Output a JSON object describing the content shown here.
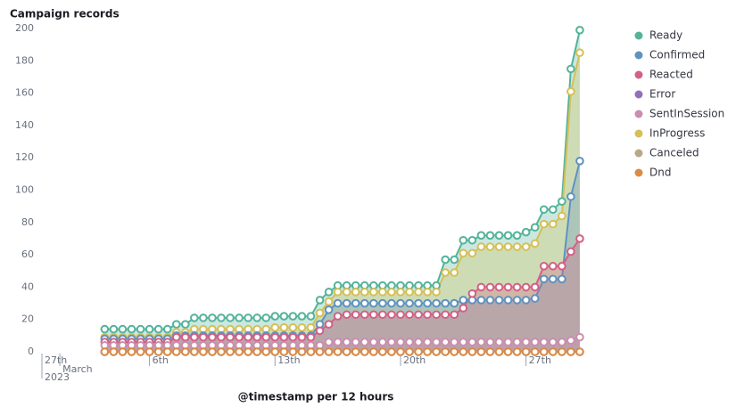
{
  "chart_data": {
    "type": "area",
    "title": "Campaign records",
    "x_label": "@timestamp per 12 hours",
    "x_year": "2023",
    "x": [
      2.5,
      3,
      3.5,
      4,
      4.5,
      5,
      5.5,
      6,
      6.5,
      7,
      7.5,
      8,
      8.5,
      9,
      9.5,
      10,
      10.5,
      11,
      11.5,
      12,
      12.5,
      13,
      13.5,
      14,
      14.5,
      15,
      15.5,
      16,
      16.5,
      17,
      17.5,
      18,
      18.5,
      19,
      19.5,
      20,
      20.5,
      21,
      21.5,
      22,
      22.5,
      23,
      23.5,
      24,
      24.5,
      25,
      25.5,
      26,
      26.5,
      27,
      27.5,
      28,
      28.5,
      29
    ],
    "xlim": [
      -1,
      29.5
    ],
    "xticks": [
      {
        "value": -1,
        "label": "27th"
      },
      {
        "value": 0,
        "label": "March"
      },
      {
        "value": 5,
        "label": "6th"
      },
      {
        "value": 12,
        "label": "13th"
      },
      {
        "value": 19,
        "label": "20th"
      },
      {
        "value": 26,
        "label": "27th"
      }
    ],
    "ylim": [
      0,
      200
    ],
    "yticks": [
      0,
      20,
      40,
      60,
      80,
      100,
      120,
      140,
      160,
      180,
      200
    ],
    "grid": false,
    "legend": "right",
    "series": [
      {
        "name": "Ready",
        "color": "#54b399",
        "values": [
          14,
          14,
          14,
          14,
          14,
          14,
          14,
          14,
          17,
          17,
          21,
          21,
          21,
          21,
          21,
          21,
          21,
          21,
          21,
          22,
          22,
          22,
          22,
          22,
          32,
          37,
          41,
          41,
          41,
          41,
          41,
          41,
          41,
          41,
          41,
          41,
          41,
          41,
          57,
          57,
          69,
          69,
          72,
          72,
          72,
          72,
          72,
          74,
          77,
          88,
          88,
          93,
          175,
          199
        ]
      },
      {
        "name": "Confirmed",
        "color": "#6092c0",
        "values": [
          8,
          8,
          8,
          8,
          8,
          8,
          8,
          8,
          10,
          10,
          10,
          10,
          10,
          10,
          10,
          10,
          10,
          10,
          10,
          10,
          10,
          10,
          10,
          10,
          17,
          26,
          30,
          30,
          30,
          30,
          30,
          30,
          30,
          30,
          30,
          30,
          30,
          30,
          30,
          30,
          32,
          32,
          32,
          32,
          32,
          32,
          32,
          32,
          33,
          45,
          45,
          45,
          96,
          118
        ]
      },
      {
        "name": "Reacted",
        "color": "#d36086",
        "values": [
          6,
          6,
          6,
          6,
          6,
          6,
          6,
          6,
          9,
          9,
          9,
          9,
          9,
          9,
          9,
          9,
          9,
          9,
          9,
          9,
          9,
          9,
          9,
          9,
          13,
          17,
          22,
          23,
          23,
          23,
          23,
          23,
          23,
          23,
          23,
          23,
          23,
          23,
          23,
          23,
          27,
          36,
          40,
          40,
          40,
          40,
          40,
          40,
          40,
          53,
          53,
          53,
          62,
          70
        ]
      },
      {
        "name": "Error",
        "color": "#9170b8",
        "values": [
          0,
          0,
          0,
          0,
          0,
          0,
          0,
          0,
          0,
          0,
          0,
          0,
          0,
          0,
          0,
          0,
          0,
          0,
          0,
          0,
          0,
          0,
          0,
          0,
          0,
          0,
          0,
          0,
          0,
          0,
          0,
          0,
          0,
          0,
          0,
          0,
          0,
          0,
          0,
          0,
          0,
          0,
          0,
          0,
          0,
          0,
          0,
          0,
          0,
          0,
          0,
          0,
          0,
          0
        ]
      },
      {
        "name": "SentInSession",
        "color": "#ca8eae",
        "values": [
          4,
          4,
          4,
          4,
          4,
          4,
          4,
          4,
          4,
          4,
          4,
          4,
          4,
          4,
          4,
          4,
          4,
          4,
          4,
          4,
          4,
          4,
          4,
          4,
          4,
          6,
          6,
          6,
          6,
          6,
          6,
          6,
          6,
          6,
          6,
          6,
          6,
          6,
          6,
          6,
          6,
          6,
          6,
          6,
          6,
          6,
          6,
          6,
          6,
          6,
          6,
          6,
          7,
          9
        ]
      },
      {
        "name": "InProgress",
        "color": "#d6bf57",
        "values": [
          9,
          9,
          9,
          9,
          9,
          9,
          9,
          9,
          12,
          12,
          14,
          14,
          14,
          14,
          14,
          14,
          14,
          14,
          14,
          15,
          15,
          15,
          15,
          15,
          24,
          31,
          37,
          37,
          37,
          37,
          37,
          37,
          37,
          37,
          37,
          37,
          37,
          37,
          49,
          49,
          61,
          61,
          65,
          65,
          65,
          65,
          65,
          65,
          67,
          79,
          79,
          84,
          161,
          185
        ]
      },
      {
        "name": "Canceled",
        "color": "#b9a888",
        "values": [
          0,
          0,
          0,
          0,
          0,
          0,
          0,
          0,
          0,
          0,
          0,
          0,
          0,
          0,
          0,
          0,
          0,
          0,
          0,
          0,
          0,
          0,
          0,
          0,
          0,
          0,
          0,
          0,
          0,
          0,
          0,
          0,
          0,
          0,
          0,
          0,
          0,
          0,
          0,
          0,
          0,
          0,
          0,
          0,
          0,
          0,
          0,
          0,
          0,
          0,
          0,
          0,
          0,
          0
        ]
      },
      {
        "name": "Dnd",
        "color": "#da8b45",
        "values": [
          0,
          0,
          0,
          0,
          0,
          0,
          0,
          0,
          0,
          0,
          0,
          0,
          0,
          0,
          0,
          0,
          0,
          0,
          0,
          0,
          0,
          0,
          0,
          0,
          0,
          0,
          0,
          0,
          0,
          0,
          0,
          0,
          0,
          0,
          0,
          0,
          0,
          0,
          0,
          0,
          0,
          0,
          0,
          0,
          0,
          0,
          0,
          0,
          0,
          0,
          0,
          0,
          0,
          0
        ]
      }
    ]
  }
}
